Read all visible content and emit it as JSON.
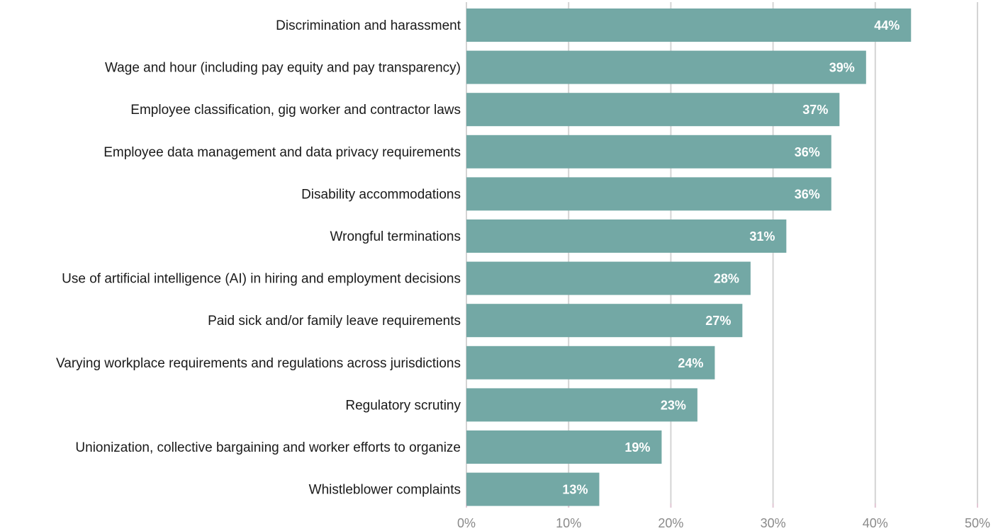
{
  "chart_data": {
    "type": "bar",
    "orientation": "horizontal",
    "categories": [
      "Discrimination and harassment",
      "Wage and hour (including pay equity and pay transparency)",
      "Employee classification, gig worker and contractor laws",
      "Employee data management and data privacy requirements",
      "Disability accommodations",
      "Wrongful terminations",
      "Use of artificial intelligence (AI) in hiring and employment decisions",
      "Paid sick and/or family leave requirements",
      "Varying workplace requirements and regulations across jurisdictions",
      "Regulatory scrutiny",
      "Unionization, collective bargaining and worker efforts to organize",
      "Whistleblower complaints"
    ],
    "values": [
      43.5,
      39.1,
      36.5,
      35.7,
      35.7,
      31.3,
      27.8,
      27.0,
      24.3,
      22.6,
      19.1,
      13.0
    ],
    "data_labels": [
      "44%",
      "39%",
      "37%",
      "36%",
      "36%",
      "31%",
      "28%",
      "27%",
      "24%",
      "23%",
      "19%",
      "13%"
    ],
    "title": "",
    "xlabel": "",
    "ylabel": "",
    "xlim": [
      0,
      50
    ],
    "ticks": [
      0,
      10,
      20,
      30,
      40,
      50
    ],
    "tick_labels": [
      "0%",
      "10%",
      "20%",
      "30%",
      "40%",
      "50%"
    ],
    "grid": true,
    "legend": "none",
    "colors": {
      "bar": "#73a8a5",
      "grid": "#d4d4d4",
      "axis_accent": "#e3c9d6",
      "tick_text": "#8a8a8a",
      "label_text": "#1a1a1a",
      "data_label_text": "#ffffff"
    }
  }
}
